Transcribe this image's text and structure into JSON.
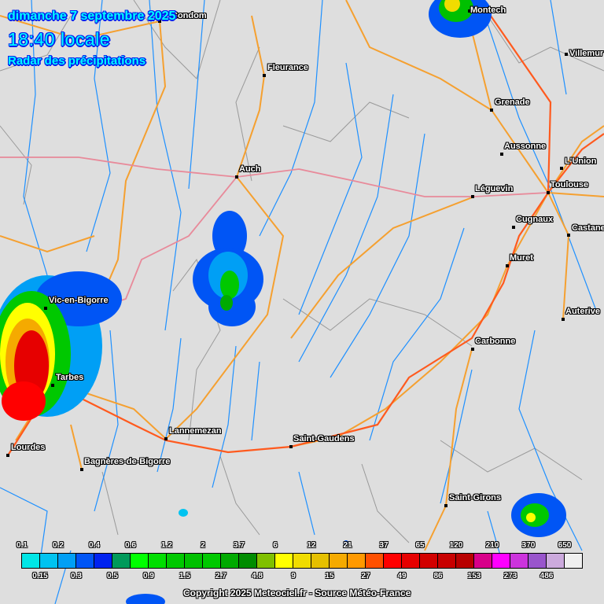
{
  "header": {
    "date": "dimanche 7 septembre 2025",
    "time": "18:40 locale",
    "subtitle": "Radar des précipitations"
  },
  "cities": [
    {
      "name": "Condom"
    },
    {
      "name": "Montech"
    },
    {
      "name": "Villemur"
    },
    {
      "name": "Fleurance"
    },
    {
      "name": "Grenade"
    },
    {
      "name": "Aussonne"
    },
    {
      "name": "L'Union"
    },
    {
      "name": "Léguevin"
    },
    {
      "name": "Toulouse"
    },
    {
      "name": "Auch"
    },
    {
      "name": "Cugnaux"
    },
    {
      "name": "Castanet"
    },
    {
      "name": "Muret"
    },
    {
      "name": "Auterive"
    },
    {
      "name": "Vic-en-Bigorre"
    },
    {
      "name": "Carbonne"
    },
    {
      "name": "Tarbes"
    },
    {
      "name": "Lannemezan"
    },
    {
      "name": "Saint-Gaudens"
    },
    {
      "name": "Lourdes"
    },
    {
      "name": "Bagnères-de-Bigorre"
    },
    {
      "name": "Saint-Girons"
    }
  ],
  "legend": {
    "top_labels": [
      "0.1",
      "0.2",
      "0.4",
      "0.6",
      "1.2",
      "2",
      "3.7",
      "6",
      "12",
      "21",
      "37",
      "65",
      "120",
      "210",
      "370",
      "650"
    ],
    "bottom_labels": [
      "0.15",
      "0.3",
      "0.5",
      "0.9",
      "1.5",
      "2.7",
      "4.8",
      "9",
      "15",
      "27",
      "49",
      "86",
      "153",
      "273",
      "486"
    ],
    "colors": [
      "#00e6e6",
      "#00c3f0",
      "#009ff5",
      "#0055f5",
      "#0022f0",
      "#009a5a",
      "#00ff00",
      "#00de00",
      "#00c800",
      "#00c000",
      "#00c800",
      "#00aa00",
      "#008c00",
      "#80c000",
      "#ffff00",
      "#f0dc00",
      "#e5c000",
      "#f5aa00",
      "#ff9900",
      "#ff5000",
      "#ff0000",
      "#e60000",
      "#d20000",
      "#c80000",
      "#b80000",
      "#d8008a",
      "#ff00ff",
      "#cc33dd",
      "#9955cc",
      "#ccaadd",
      "#f0f0f0"
    ]
  },
  "copyright": "Copyright 2025 Meteociel.fr - Source Météo-France"
}
